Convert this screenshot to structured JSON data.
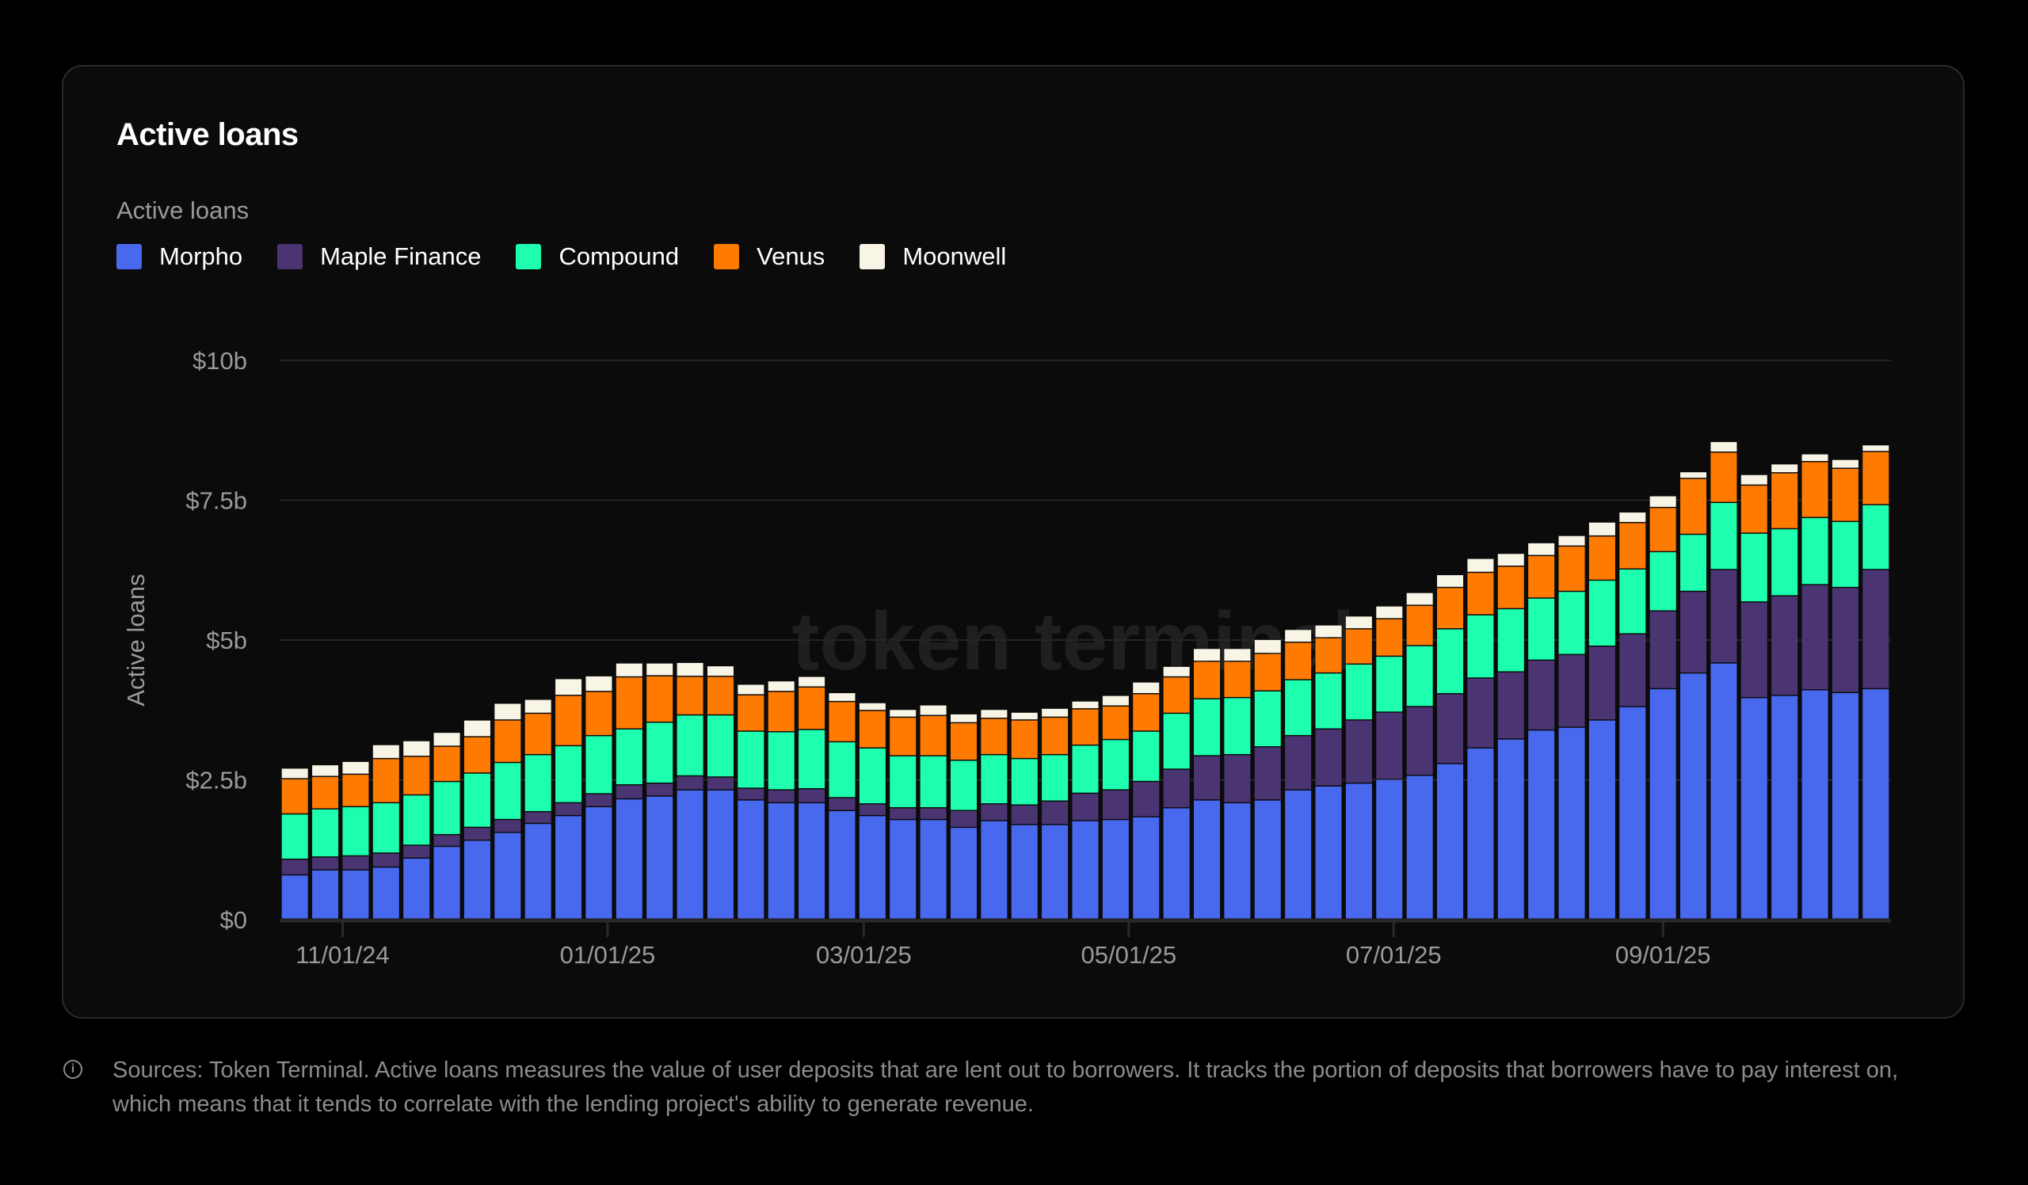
{
  "card": {
    "title": "Active loans"
  },
  "footer": {
    "icon": "info-icon",
    "text": "Sources: Token Terminal. Active loans measures the value of user deposits that are lent out to borrowers. It tracks the portion of deposits that borrowers have to pay interest on, which means that it tends to correlate with the lending project's ability to generate revenue."
  },
  "watermark": "token terminal",
  "chart_data": {
    "type": "bar",
    "stacked": true,
    "title": "Active loans",
    "legend_title": "Active loans",
    "legend_placement": "top-left",
    "ylabel": "Active loans",
    "xlabel": "",
    "ylim": [
      0,
      10
    ],
    "yunit": "$b",
    "yticks": [
      0,
      2.5,
      5,
      7.5,
      10
    ],
    "ytick_labels": [
      "$0",
      "$2.5b",
      "$5b",
      "$7.5b",
      "$10b"
    ],
    "xticks": [
      "2024-11-01",
      "2025-01-01",
      "2025-03-01",
      "2025-05-01",
      "2025-07-01",
      "2025-09-01"
    ],
    "xtick_labels": [
      "11/01/24",
      "01/01/25",
      "03/01/25",
      "05/01/25",
      "07/01/25",
      "09/01/25"
    ],
    "grid": true,
    "x_start": "2024-10-21",
    "x_interval_days": 7,
    "series": [
      {
        "name": "Morpho",
        "color": "#4868EE",
        "values": [
          0.79,
          0.88,
          0.88,
          0.93,
          1.09,
          1.3,
          1.41,
          1.55,
          1.71,
          1.85,
          2.01,
          2.15,
          2.2,
          2.31,
          2.31,
          2.13,
          2.08,
          2.08,
          1.94,
          1.85,
          1.78,
          1.78,
          1.64,
          1.76,
          1.69,
          1.69,
          1.76,
          1.78,
          1.83,
          1.99,
          2.13,
          2.08,
          2.13,
          2.31,
          2.38,
          2.43,
          2.5,
          2.57,
          2.78,
          3.06,
          3.22,
          3.38,
          3.43,
          3.56,
          3.8,
          4.12,
          4.4,
          4.58,
          3.96,
          4.0,
          4.1,
          4.05,
          4.12
        ]
      },
      {
        "name": "Maple Finance",
        "color": "#4A3572",
        "values": [
          0.28,
          0.23,
          0.25,
          0.25,
          0.23,
          0.21,
          0.23,
          0.23,
          0.21,
          0.23,
          0.23,
          0.25,
          0.23,
          0.25,
          0.23,
          0.21,
          0.23,
          0.25,
          0.23,
          0.21,
          0.21,
          0.21,
          0.3,
          0.3,
          0.35,
          0.42,
          0.49,
          0.53,
          0.63,
          0.69,
          0.79,
          0.86,
          0.95,
          0.97,
          1.02,
          1.13,
          1.2,
          1.23,
          1.25,
          1.25,
          1.2,
          1.25,
          1.3,
          1.32,
          1.3,
          1.39,
          1.46,
          1.67,
          1.71,
          1.78,
          1.88,
          1.88,
          2.13
        ]
      },
      {
        "name": "Compound",
        "color": "#1DFFAE",
        "values": [
          0.81,
          0.86,
          0.88,
          0.9,
          0.9,
          0.95,
          0.97,
          1.02,
          1.02,
          1.02,
          1.04,
          1.0,
          1.09,
          1.09,
          1.11,
          1.02,
          1.04,
          1.06,
          1.0,
          1.0,
          0.93,
          0.93,
          0.9,
          0.88,
          0.83,
          0.83,
          0.86,
          0.9,
          0.9,
          1.0,
          1.02,
          1.02,
          1.0,
          1.0,
          1.0,
          1.0,
          1.0,
          1.09,
          1.16,
          1.13,
          1.13,
          1.11,
          1.13,
          1.18,
          1.16,
          1.06,
          1.02,
          1.2,
          1.23,
          1.2,
          1.2,
          1.18,
          1.16
        ]
      },
      {
        "name": "Venus",
        "color": "#FF7A00",
        "values": [
          0.63,
          0.58,
          0.58,
          0.79,
          0.69,
          0.63,
          0.65,
          0.76,
          0.74,
          0.9,
          0.79,
          0.93,
          0.83,
          0.69,
          0.69,
          0.65,
          0.72,
          0.76,
          0.72,
          0.67,
          0.69,
          0.72,
          0.67,
          0.65,
          0.69,
          0.67,
          0.65,
          0.6,
          0.67,
          0.65,
          0.67,
          0.65,
          0.67,
          0.67,
          0.63,
          0.63,
          0.67,
          0.72,
          0.74,
          0.76,
          0.76,
          0.76,
          0.81,
          0.79,
          0.83,
          0.79,
          1.0,
          0.9,
          0.86,
          1.0,
          1.0,
          0.95,
          0.95
        ]
      },
      {
        "name": "Moonwell",
        "color": "#F8F4E6",
        "values": [
          0.19,
          0.21,
          0.23,
          0.25,
          0.28,
          0.25,
          0.3,
          0.3,
          0.25,
          0.3,
          0.28,
          0.25,
          0.23,
          0.25,
          0.19,
          0.19,
          0.19,
          0.19,
          0.16,
          0.14,
          0.14,
          0.19,
          0.16,
          0.16,
          0.14,
          0.16,
          0.14,
          0.19,
          0.21,
          0.19,
          0.23,
          0.23,
          0.25,
          0.23,
          0.23,
          0.23,
          0.23,
          0.23,
          0.23,
          0.25,
          0.23,
          0.23,
          0.19,
          0.25,
          0.19,
          0.21,
          0.12,
          0.19,
          0.19,
          0.16,
          0.14,
          0.16,
          0.12
        ]
      }
    ]
  }
}
